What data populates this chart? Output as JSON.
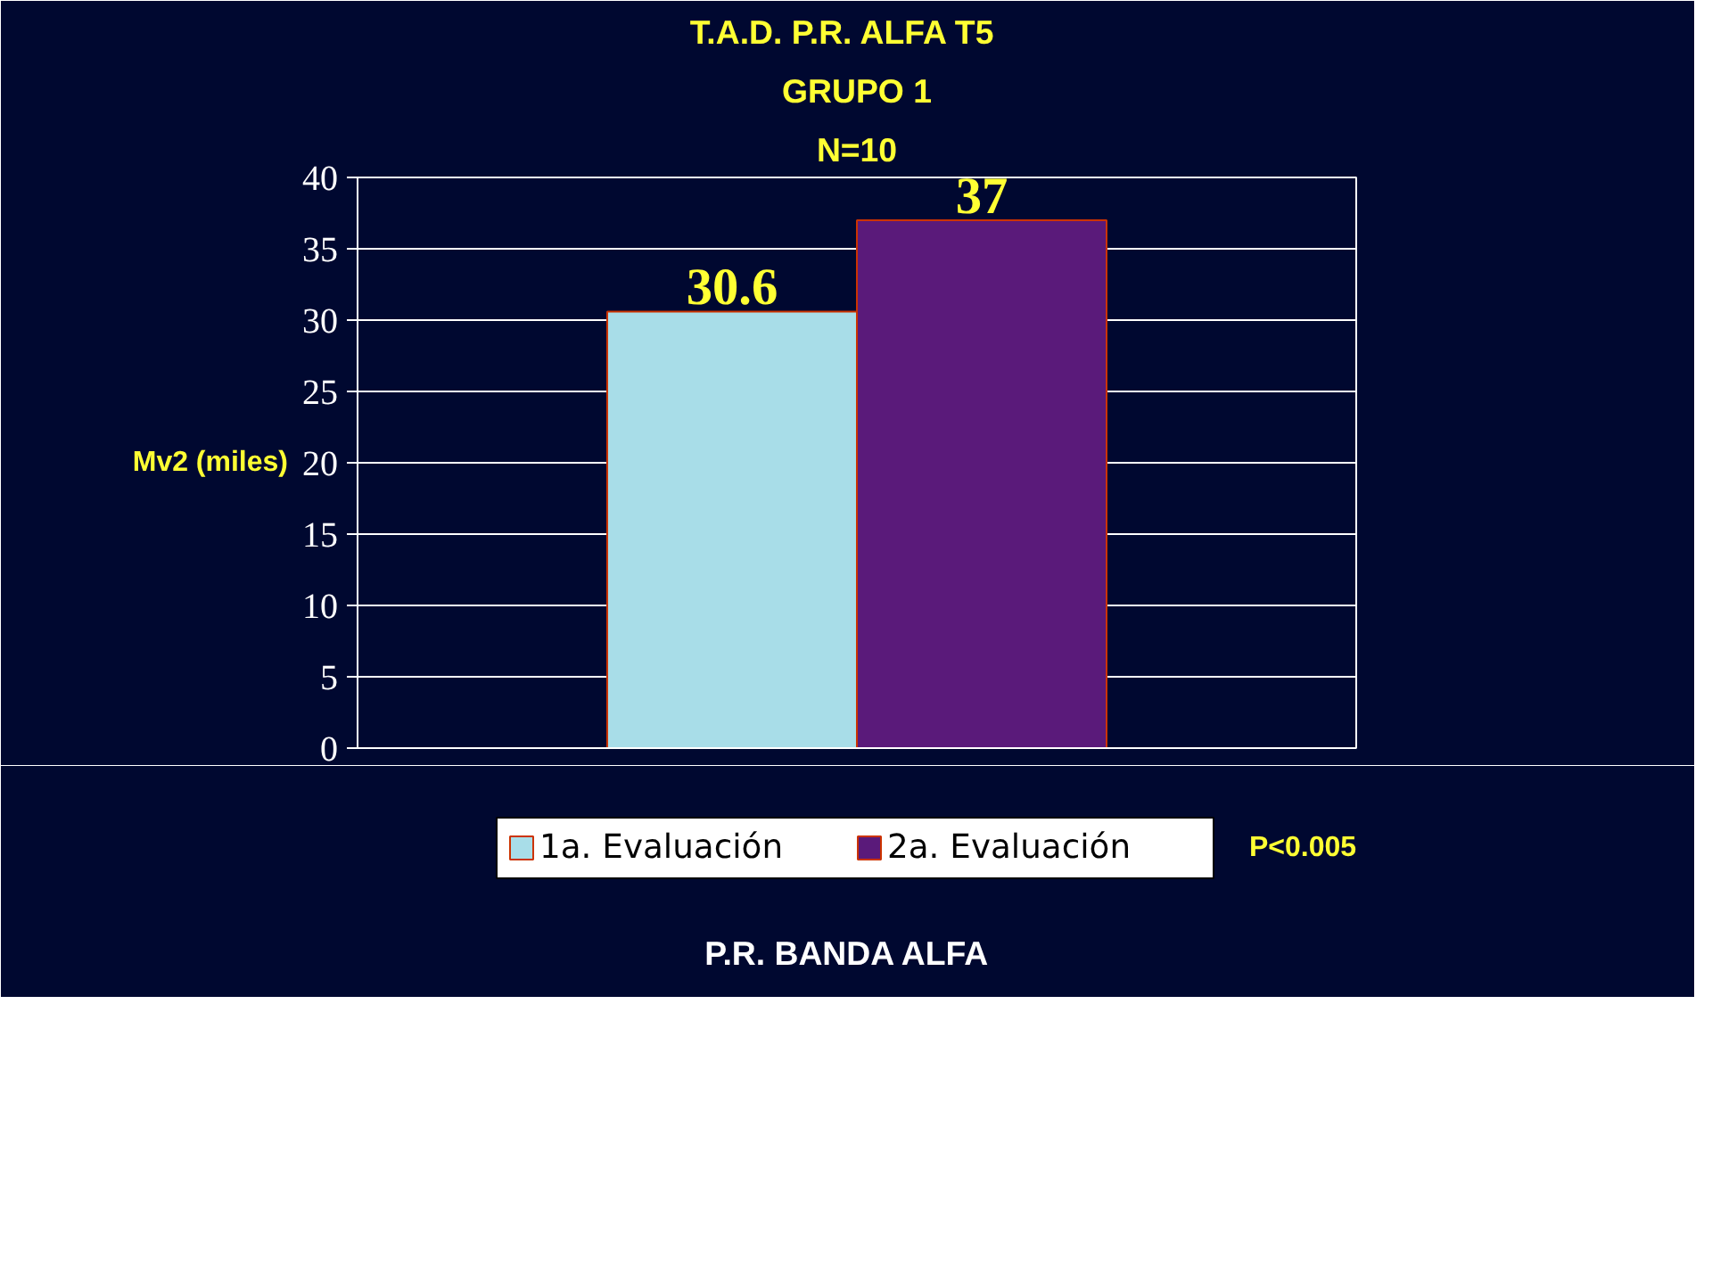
{
  "chart_data": {
    "type": "bar",
    "title": "T.A.D.  P.R.  ALFA  T5",
    "subtitle": "GRUPO 1",
    "annotations": [
      "N=10",
      "P<0.005",
      "P.R.  BANDA  ALFA"
    ],
    "ylabel": "Mv2 (miles)",
    "categories": [
      null
    ],
    "series": [
      {
        "name": "1a. Evaluación",
        "color": "#a8dde8",
        "values": [
          30.6
        ]
      },
      {
        "name": "2a. Evaluación",
        "color": "#5a1a7a",
        "values": [
          37
        ]
      }
    ],
    "ylim": [
      0,
      40
    ],
    "yticks": [
      0,
      5,
      10,
      15,
      20,
      25,
      30,
      35,
      40
    ],
    "grid": "y",
    "legend": "bottom",
    "data_labels": true
  }
}
